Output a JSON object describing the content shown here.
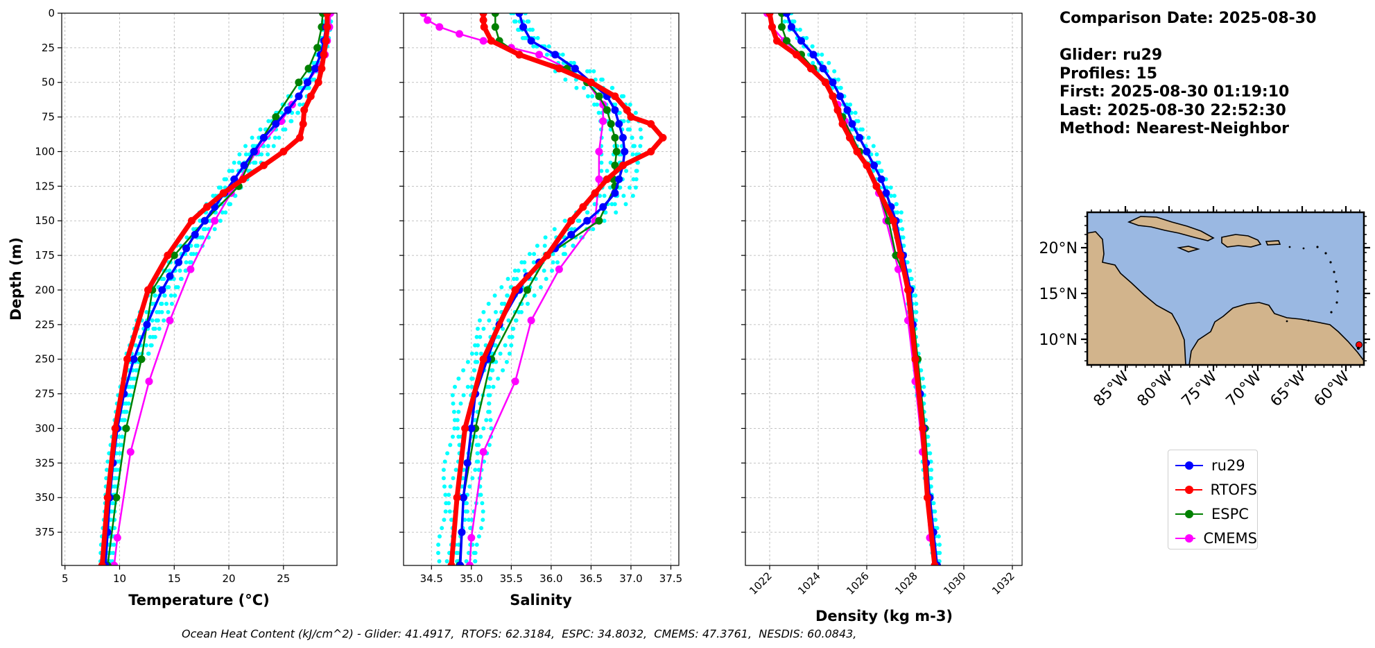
{
  "info": {
    "comparison": "Comparison Date: 2025-08-30",
    "glider": "Glider: ru29",
    "profiles": "Profiles: 15",
    "first": "First: 2025-08-30 01:19:10",
    "last": "Last: 2025-08-30 22:52:30",
    "method": "Method: Nearest-Neighbor"
  },
  "footer": "Ocean Heat Content (kJ/cm^2) - Glider: 41.4917,  RTOFS: 62.3184,  ESPC: 34.8032,  CMEMS: 47.3761,  NESDIS: 60.0843,",
  "colors": {
    "glider": "#0000ff",
    "rtofs": "#ff0000",
    "espc": "#008000",
    "cmems": "#ff00ff",
    "profiles": "#00ffff",
    "ocean": "#9ab8e2",
    "land": "#d2b48c"
  },
  "legend": [
    {
      "label": "ru29",
      "color": "#0000ff"
    },
    {
      "label": "RTOFS",
      "color": "#ff0000"
    },
    {
      "label": "ESPC",
      "color": "#008000"
    },
    {
      "label": "CMEMS",
      "color": "#ff00ff"
    }
  ],
  "map": {
    "lat_labels": [
      "20°N",
      "15°N",
      "10°N"
    ],
    "lon_labels": [
      "85°W",
      "80°W",
      "75°W",
      "70°W",
      "65°W",
      "60°W"
    ],
    "glider_position": {
      "lon": -58.9,
      "lat": 9.4
    }
  },
  "chart_data": [
    {
      "type": "line",
      "id": "temperature",
      "xlabel": "Temperature (°C)",
      "ylabel": "Depth (m)",
      "xlim": [
        4.7,
        29.9
      ],
      "ylim": [
        399,
        0
      ],
      "xticks": [
        5,
        10,
        15,
        20,
        25
      ],
      "yticks": [
        0,
        25,
        50,
        75,
        100,
        125,
        150,
        175,
        200,
        225,
        250,
        275,
        300,
        325,
        350,
        375
      ],
      "grid": true,
      "series": [
        {
          "name": "ru29",
          "depth": [
            0,
            10,
            20,
            30,
            40,
            50,
            60,
            70,
            80,
            90,
            100,
            110,
            120,
            130,
            140,
            150,
            160,
            170,
            180,
            190,
            200,
            225,
            250,
            275,
            300,
            325,
            350,
            375,
            399
          ],
          "values": [
            29.0,
            28.9,
            28.7,
            28.4,
            27.9,
            27.2,
            26.4,
            25.4,
            24.3,
            23.2,
            22.3,
            21.4,
            20.5,
            19.6,
            18.7,
            17.8,
            16.9,
            16.1,
            15.4,
            14.6,
            13.9,
            12.5,
            11.3,
            10.4,
            9.8,
            9.4,
            9.1,
            8.9,
            8.7
          ]
        },
        {
          "name": "RTOFS",
          "depth": [
            0,
            10,
            20,
            30,
            40,
            50,
            60,
            70,
            80,
            90,
            100,
            110,
            120,
            130,
            140,
            150,
            175,
            200,
            250,
            300,
            350,
            399
          ],
          "values": [
            29.0,
            29.0,
            28.9,
            28.7,
            28.5,
            28.2,
            27.5,
            26.9,
            26.8,
            26.5,
            25.0,
            23.2,
            21.3,
            19.5,
            18.0,
            16.6,
            14.4,
            12.6,
            10.7,
            9.6,
            8.9,
            8.4
          ]
        },
        {
          "name": "ESPC",
          "depth": [
            0,
            10,
            25,
            40,
            50,
            75,
            100,
            125,
            150,
            175,
            200,
            250,
            300,
            350,
            399
          ],
          "values": [
            28.6,
            28.5,
            28.1,
            27.3,
            26.4,
            24.3,
            22.3,
            20.9,
            17.8,
            15.0,
            13.0,
            12.0,
            10.6,
            9.7,
            8.9
          ]
        },
        {
          "name": "CMEMS",
          "depth": [
            0,
            10,
            20,
            30,
            40,
            50,
            66,
            78,
            100,
            130,
            150,
            185,
            222,
            266,
            317,
            379,
            399
          ],
          "values": [
            29.3,
            29.2,
            29.0,
            28.8,
            28.1,
            27.2,
            25.8,
            24.8,
            22.5,
            20.2,
            18.7,
            16.5,
            14.6,
            12.7,
            11.0,
            9.8,
            9.5
          ]
        }
      ],
      "profiles": {
        "name": "glider profiles",
        "depth": [
          0,
          10,
          20,
          30,
          40,
          50,
          60,
          70,
          80,
          90,
          100,
          110,
          120,
          130,
          140,
          150,
          160,
          170,
          180,
          190,
          200,
          225,
          250,
          275,
          300,
          325,
          350,
          375,
          399
        ],
        "offsets": [
          -1.0,
          -0.6,
          -0.3,
          0.0,
          0.3,
          0.6,
          1.0,
          1.3
        ]
      }
    },
    {
      "type": "line",
      "id": "salinity",
      "xlabel": "Salinity",
      "ylabel": "",
      "xlim": [
        34.15,
        37.6
      ],
      "ylim": [
        399,
        0
      ],
      "xticks": [
        34.5,
        35.0,
        35.5,
        36.0,
        36.5,
        37.0,
        37.5
      ],
      "xticklabels": [
        "34.5",
        "35.0",
        "35.5",
        "36.0",
        "36.5",
        "37.0",
        "37.5"
      ],
      "grid": true,
      "series": [
        {
          "name": "ru29",
          "depth": [
            0,
            10,
            20,
            30,
            40,
            50,
            60,
            70,
            80,
            90,
            100,
            110,
            120,
            130,
            140,
            150,
            160,
            170,
            180,
            190,
            200,
            225,
            250,
            275,
            300,
            325,
            350,
            375,
            399
          ],
          "values": [
            35.6,
            35.65,
            35.75,
            36.05,
            36.3,
            36.5,
            36.7,
            36.8,
            36.85,
            36.9,
            36.92,
            36.9,
            36.85,
            36.8,
            36.65,
            36.45,
            36.25,
            36.05,
            35.85,
            35.7,
            35.6,
            35.35,
            35.2,
            35.05,
            35.0,
            34.95,
            34.9,
            34.88,
            34.86
          ]
        },
        {
          "name": "RTOFS",
          "depth": [
            0,
            5,
            10,
            20,
            30,
            40,
            50,
            60,
            70,
            75,
            80,
            90,
            100,
            110,
            120,
            130,
            140,
            150,
            175,
            200,
            250,
            300,
            350,
            399
          ],
          "values": [
            35.15,
            35.15,
            35.16,
            35.25,
            35.6,
            36.1,
            36.5,
            36.8,
            36.95,
            37.0,
            37.25,
            37.4,
            37.25,
            36.9,
            36.7,
            36.55,
            36.4,
            36.25,
            35.95,
            35.55,
            35.15,
            34.92,
            34.82,
            34.75
          ]
        },
        {
          "name": "ESPC",
          "depth": [
            0,
            10,
            20,
            30,
            40,
            50,
            60,
            70,
            80,
            90,
            100,
            110,
            120,
            125,
            150,
            175,
            200,
            250,
            300,
            350,
            399
          ],
          "values": [
            35.3,
            35.3,
            35.35,
            35.6,
            36.2,
            36.45,
            36.6,
            36.7,
            36.75,
            36.8,
            36.82,
            36.8,
            36.78,
            36.8,
            36.6,
            35.95,
            35.7,
            35.25,
            35.05,
            34.9,
            34.85
          ]
        },
        {
          "name": "CMEMS",
          "depth": [
            0,
            5,
            10,
            15,
            20,
            25,
            30,
            40,
            50,
            66,
            78,
            100,
            120,
            150,
            185,
            222,
            266,
            317,
            379,
            399
          ],
          "values": [
            34.4,
            34.45,
            34.6,
            34.85,
            35.15,
            35.5,
            35.85,
            36.2,
            36.45,
            36.65,
            36.65,
            36.6,
            36.6,
            36.55,
            36.1,
            35.75,
            35.55,
            35.15,
            35.0,
            34.98
          ]
        }
      ],
      "profiles": {
        "name": "glider profiles",
        "depth": [
          0,
          10,
          20,
          30,
          40,
          50,
          60,
          70,
          80,
          90,
          100,
          110,
          120,
          130,
          140,
          150,
          160,
          170,
          180,
          190,
          200,
          225,
          250,
          275,
          300,
          325,
          350,
          375,
          399
        ],
        "offsets": [
          -0.25,
          -0.15,
          -0.08,
          0.0,
          0.08,
          0.15,
          0.22
        ]
      }
    },
    {
      "type": "line",
      "id": "density",
      "xlabel": "Density (kg m-3)",
      "ylabel": "",
      "xlim": [
        1021.0,
        1032.4
      ],
      "ylim": [
        399,
        0
      ],
      "xticks": [
        1022,
        1024,
        1026,
        1028,
        1030,
        1032
      ],
      "grid": true,
      "series": [
        {
          "name": "ru29",
          "depth": [
            0,
            10,
            20,
            30,
            40,
            50,
            60,
            70,
            80,
            90,
            100,
            110,
            120,
            130,
            140,
            150,
            175,
            200,
            225,
            250,
            275,
            300,
            325,
            350,
            375,
            399
          ],
          "values": [
            1022.7,
            1022.9,
            1023.3,
            1023.8,
            1024.2,
            1024.6,
            1024.9,
            1025.2,
            1025.4,
            1025.7,
            1026.0,
            1026.3,
            1026.6,
            1026.8,
            1027.0,
            1027.2,
            1027.5,
            1027.8,
            1027.9,
            1028.0,
            1028.2,
            1028.35,
            1028.45,
            1028.6,
            1028.75,
            1028.9
          ]
        },
        {
          "name": "RTOFS",
          "depth": [
            0,
            10,
            20,
            30,
            40,
            50,
            60,
            70,
            80,
            90,
            100,
            110,
            125,
            150,
            175,
            200,
            250,
            300,
            350,
            399
          ],
          "values": [
            1022.0,
            1022.1,
            1022.3,
            1023.1,
            1023.7,
            1024.3,
            1024.6,
            1024.8,
            1025.0,
            1025.3,
            1025.6,
            1026.0,
            1026.4,
            1027.1,
            1027.4,
            1027.7,
            1028.0,
            1028.3,
            1028.5,
            1028.8
          ]
        },
        {
          "name": "ESPC",
          "depth": [
            0,
            10,
            20,
            30,
            40,
            50,
            60,
            75,
            100,
            125,
            150,
            175,
            200,
            250,
            300,
            350,
            399
          ],
          "values": [
            1022.5,
            1022.5,
            1022.7,
            1023.3,
            1023.8,
            1024.3,
            1024.6,
            1025.0,
            1025.7,
            1026.4,
            1026.9,
            1027.2,
            1027.8,
            1028.1,
            1028.4,
            1028.6,
            1028.9
          ]
        },
        {
          "name": "CMEMS",
          "depth": [
            0,
            10,
            20,
            30,
            40,
            50,
            66,
            78,
            100,
            130,
            150,
            185,
            222,
            266,
            317,
            379,
            399
          ],
          "values": [
            1021.9,
            1022.1,
            1022.6,
            1023.3,
            1023.8,
            1024.3,
            1024.8,
            1025.1,
            1025.7,
            1026.5,
            1026.8,
            1027.3,
            1027.7,
            1028.0,
            1028.3,
            1028.6,
            1028.8
          ]
        }
      ],
      "profiles": {
        "name": "glider profiles",
        "depth": [
          0,
          10,
          20,
          30,
          40,
          50,
          60,
          70,
          80,
          90,
          100,
          110,
          120,
          130,
          140,
          150,
          175,
          200,
          225,
          250,
          275,
          300,
          325,
          350,
          375,
          399
        ],
        "offsets": [
          -0.15,
          -0.05,
          0.05,
          0.15,
          0.25
        ]
      }
    }
  ]
}
